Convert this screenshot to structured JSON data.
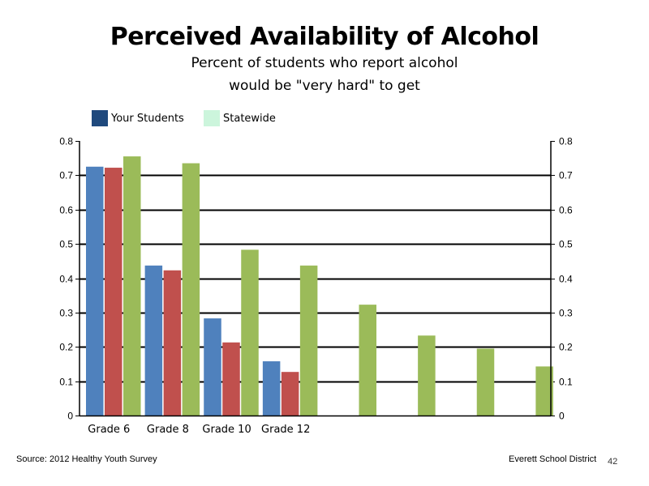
{
  "slide": {
    "title": "Perceived Availability of Alcohol",
    "subtitle_line1": "Percent of students who report alcohol",
    "subtitle_line2": "would be \"very hard\" to get",
    "source": "Source: 2012 Healthy Youth Survey",
    "district": "Everett School District",
    "page_number": "42"
  },
  "legend": [
    {
      "label": "Your Students",
      "color": "#1f497d"
    },
    {
      "label": "Statewide",
      "color": "#ccf5dc"
    }
  ],
  "chart_data": {
    "type": "bar",
    "categories": [
      "Grade 6",
      "Grade 8",
      "Grade 10",
      "Grade 12",
      "",
      "",
      "",
      ""
    ],
    "series": [
      {
        "color": "#4f81bd",
        "values": [
          0.725,
          0.437,
          0.283,
          0.158,
          null,
          null,
          null,
          null
        ]
      },
      {
        "color": "#c0504d",
        "values": [
          0.722,
          0.423,
          0.213,
          0.127,
          null,
          null,
          null,
          null
        ]
      },
      {
        "color": "#9bbb59",
        "values": [
          0.755,
          0.735,
          0.483,
          0.437,
          0.323,
          0.233,
          0.195,
          0.143
        ]
      }
    ],
    "ylim": [
      0,
      0.8
    ],
    "yticks": [
      "0",
      "0.1",
      "0.2",
      "0.3",
      "0.4",
      "0.5",
      "0.6",
      "0.7",
      "0.8"
    ],
    "secondary_yticks": [
      "0",
      "0.1",
      "0.2",
      "0.3",
      "0.4",
      "0.5",
      "0.6",
      "0.7",
      "0.8"
    ],
    "grid": true
  }
}
